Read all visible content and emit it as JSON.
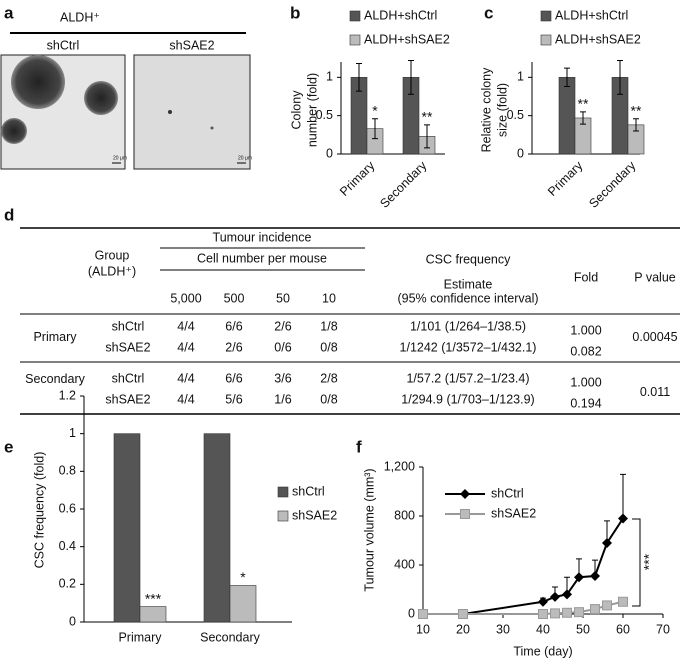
{
  "panel_labels": [
    "a",
    "b",
    "c",
    "d",
    "e",
    "f"
  ],
  "panel_a": {
    "title": "ALDH⁺",
    "images": [
      {
        "label": "shCtrl",
        "scale_bar": "20 μm"
      },
      {
        "label": "shSAE2",
        "scale_bar": "20 μm"
      }
    ]
  },
  "chart_data": [
    {
      "type": "bar",
      "ylabel": [
        "Colony",
        "number (fold)"
      ],
      "categories": [
        "Primary",
        "Secondary"
      ],
      "series": [
        {
          "name": "ALDH+shCtrl",
          "color": "#555555",
          "values": [
            1,
            1
          ],
          "errors": [
            0.18,
            0.22
          ]
        },
        {
          "name": "ALDH+shSAE2",
          "color": "#bbbbbb",
          "values": [
            0.33,
            0.23
          ],
          "errors": [
            0.13,
            0.15
          ],
          "annotations": [
            "*",
            "**"
          ]
        }
      ],
      "ylim": [
        0,
        1.2
      ],
      "yticks": [
        0,
        0.5,
        1
      ]
    },
    {
      "type": "bar",
      "ylabel": [
        "Relative colony",
        "size (fold)"
      ],
      "categories": [
        "Primary",
        "Secondary"
      ],
      "series": [
        {
          "name": "ALDH+shCtrl",
          "color": "#555555",
          "values": [
            1,
            1
          ],
          "errors": [
            0.12,
            0.22
          ]
        },
        {
          "name": "ALDH+shSAE2",
          "color": "#bbbbbb",
          "values": [
            0.47,
            0.38
          ],
          "errors": [
            0.08,
            0.08
          ],
          "annotations": [
            "**",
            "**"
          ]
        }
      ],
      "ylim": [
        0,
        1.2
      ],
      "yticks": [
        0,
        0.5,
        1
      ]
    },
    {
      "type": "bar",
      "ylabel": [
        "CSC frequency (fold)"
      ],
      "categories": [
        "Primary",
        "Secondary"
      ],
      "series": [
        {
          "name": "shCtrl",
          "color": "#555555",
          "values": [
            1,
            1
          ]
        },
        {
          "name": "shSAE2",
          "color": "#bbbbbb",
          "values": [
            0.082,
            0.194
          ],
          "annotations": [
            "***",
            "*"
          ]
        }
      ],
      "ylim": [
        0,
        1.2
      ],
      "yticks": [
        0,
        0.2,
        0.4,
        0.6,
        0.8,
        1,
        1.2
      ]
    },
    {
      "type": "line",
      "xlabel": "Time (day)",
      "ylabel": [
        "Tumour volume (mm³)"
      ],
      "annotation": "***",
      "series": [
        {
          "name": "shCtrl",
          "color": "#000000",
          "marker": "diamond",
          "x": [
            10,
            20,
            40,
            43,
            46,
            49,
            53,
            56,
            60
          ],
          "values": [
            0,
            0,
            100,
            140,
            160,
            300,
            310,
            580,
            780
          ],
          "errors": [
            0,
            0,
            30,
            80,
            140,
            150,
            130,
            180,
            360
          ]
        },
        {
          "name": "shSAE2",
          "color": "#999999",
          "marker": "square",
          "x": [
            10,
            20,
            40,
            43,
            46,
            49,
            53,
            56,
            60
          ],
          "values": [
            0,
            0,
            0,
            5,
            10,
            15,
            40,
            70,
            100
          ],
          "errors": [
            0,
            0,
            0,
            5,
            10,
            10,
            20,
            20,
            30
          ]
        }
      ],
      "xlim": [
        10,
        70
      ],
      "xticks": [
        10,
        20,
        30,
        40,
        50,
        60,
        70
      ],
      "ylim": [
        0,
        1200
      ],
      "yticks": [
        0,
        400,
        800,
        {
          "value": 1200,
          "label": "1,200"
        }
      ]
    }
  ],
  "table": {
    "group_header": [
      "Group",
      "(ALDH⁺)"
    ],
    "incidence_header": "Tumour incidence",
    "cell_header": "Cell number per mouse",
    "cell_numbers": [
      "5,000",
      "500",
      "50",
      "10"
    ],
    "csc_header": "CSC frequency",
    "estimate_header": [
      "Estimate",
      "(95% confidence interval)"
    ],
    "fold_header": "Fold",
    "p_header": "P value",
    "groups": [
      {
        "name": "Primary",
        "p_value": "0.00045",
        "rows": [
          {
            "name": "shCtrl",
            "cells": [
              "4/4",
              "6/6",
              "2/6",
              "1/8"
            ],
            "estimate": "1/101 (1/264–1/38.5)",
            "fold": "1.000"
          },
          {
            "name": "shSAE2",
            "cells": [
              "4/4",
              "2/6",
              "0/6",
              "0/8"
            ],
            "estimate": "1/1242 (1/3572–1/432.1)",
            "fold": "0.082"
          }
        ]
      },
      {
        "name": "Secondary",
        "p_value": "0.011",
        "rows": [
          {
            "name": "shCtrl",
            "cells": [
              "4/4",
              "6/6",
              "3/6",
              "2/8"
            ],
            "estimate": "1/57.2 (1/57.2–1/23.4)",
            "fold": "1.000"
          },
          {
            "name": "shSAE2",
            "cells": [
              "4/4",
              "5/6",
              "1/6",
              "0/8"
            ],
            "estimate": "1/294.9 (1/703–1/123.9)",
            "fold": "0.194"
          }
        ]
      }
    ]
  }
}
